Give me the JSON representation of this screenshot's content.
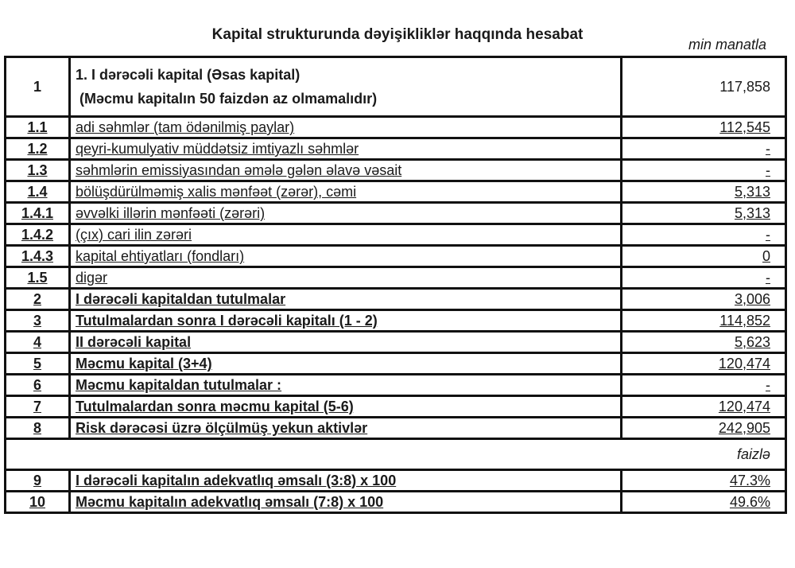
{
  "title": "Kapital strukturunda dəyişikliklər haqqında hesabat",
  "unit": "min manatla",
  "percent_unit": "faizlə",
  "rows": [
    {
      "num": "1",
      "label1": "1. I dərəcəli kapital (Əsas kapital)",
      "label2": " (Məcmu kapitalın 50 faizdən az olmamalıdır)",
      "value": "117,858"
    },
    {
      "num": "1.1",
      "label": "adi səhmlər (tam ödənilmiş paylar)",
      "value": "112,545"
    },
    {
      "num": "1.2",
      "label": "qeyri-kumulyativ müddətsiz imtiyazlı səhmlər",
      "value": "-"
    },
    {
      "num": "1.3",
      "label": "səhmlərin emissiyasından əmələ gələn əlavə vəsait",
      "value": "-"
    },
    {
      "num": "1.4",
      "label": "bölüşdürülməmiş xalis mənfəət (zərər), cəmi",
      "value": "5,313"
    },
    {
      "num": "1.4.1",
      "label": "əvvəlki illərin mənfəəti (zərəri)",
      "value": "5,313"
    },
    {
      "num": "1.4.2",
      "label": "(çıx) cari ilin zərəri",
      "value": "-"
    },
    {
      "num": "1.4.3",
      "label": "kapital ehtiyatları (fondları)",
      "value": "0"
    },
    {
      "num": "1.5",
      "label": "digər",
      "value": "-"
    },
    {
      "num": "2",
      "label": "I dərəcəli kapitaldan tutulmalar",
      "value": "3,006"
    },
    {
      "num": "3",
      "label": "Tutulmalardan sonra I dərəcəli kapitalı (1 - 2)",
      "value": "114,852"
    },
    {
      "num": "4",
      "label": "II dərəcəli kapital",
      "value": "5,623"
    },
    {
      "num": "5",
      "label": "Məcmu kapital (3+4)",
      "value": "120,474"
    },
    {
      "num": "6",
      "label": "Məcmu kapitaldan tutulmalar :",
      "value": "-"
    },
    {
      "num": "7",
      "label": "Tutulmalardan sonra məcmu kapital (5-6)",
      "value": "120,474"
    },
    {
      "num": "8",
      "label": "Risk dərəcəsi üzrə ölçülmüş yekun aktivlər",
      "value": "242,905"
    }
  ],
  "ratios": [
    {
      "num": "9",
      "label": "I dərəcəli kapitalın adekvatlıq əmsalı (3:8) x 100",
      "value": "47.3%"
    },
    {
      "num": "10",
      "label": "Məcmu kapitalın adekvatlıq əmsalı (7:8) x 100",
      "value": "49.6%"
    }
  ]
}
